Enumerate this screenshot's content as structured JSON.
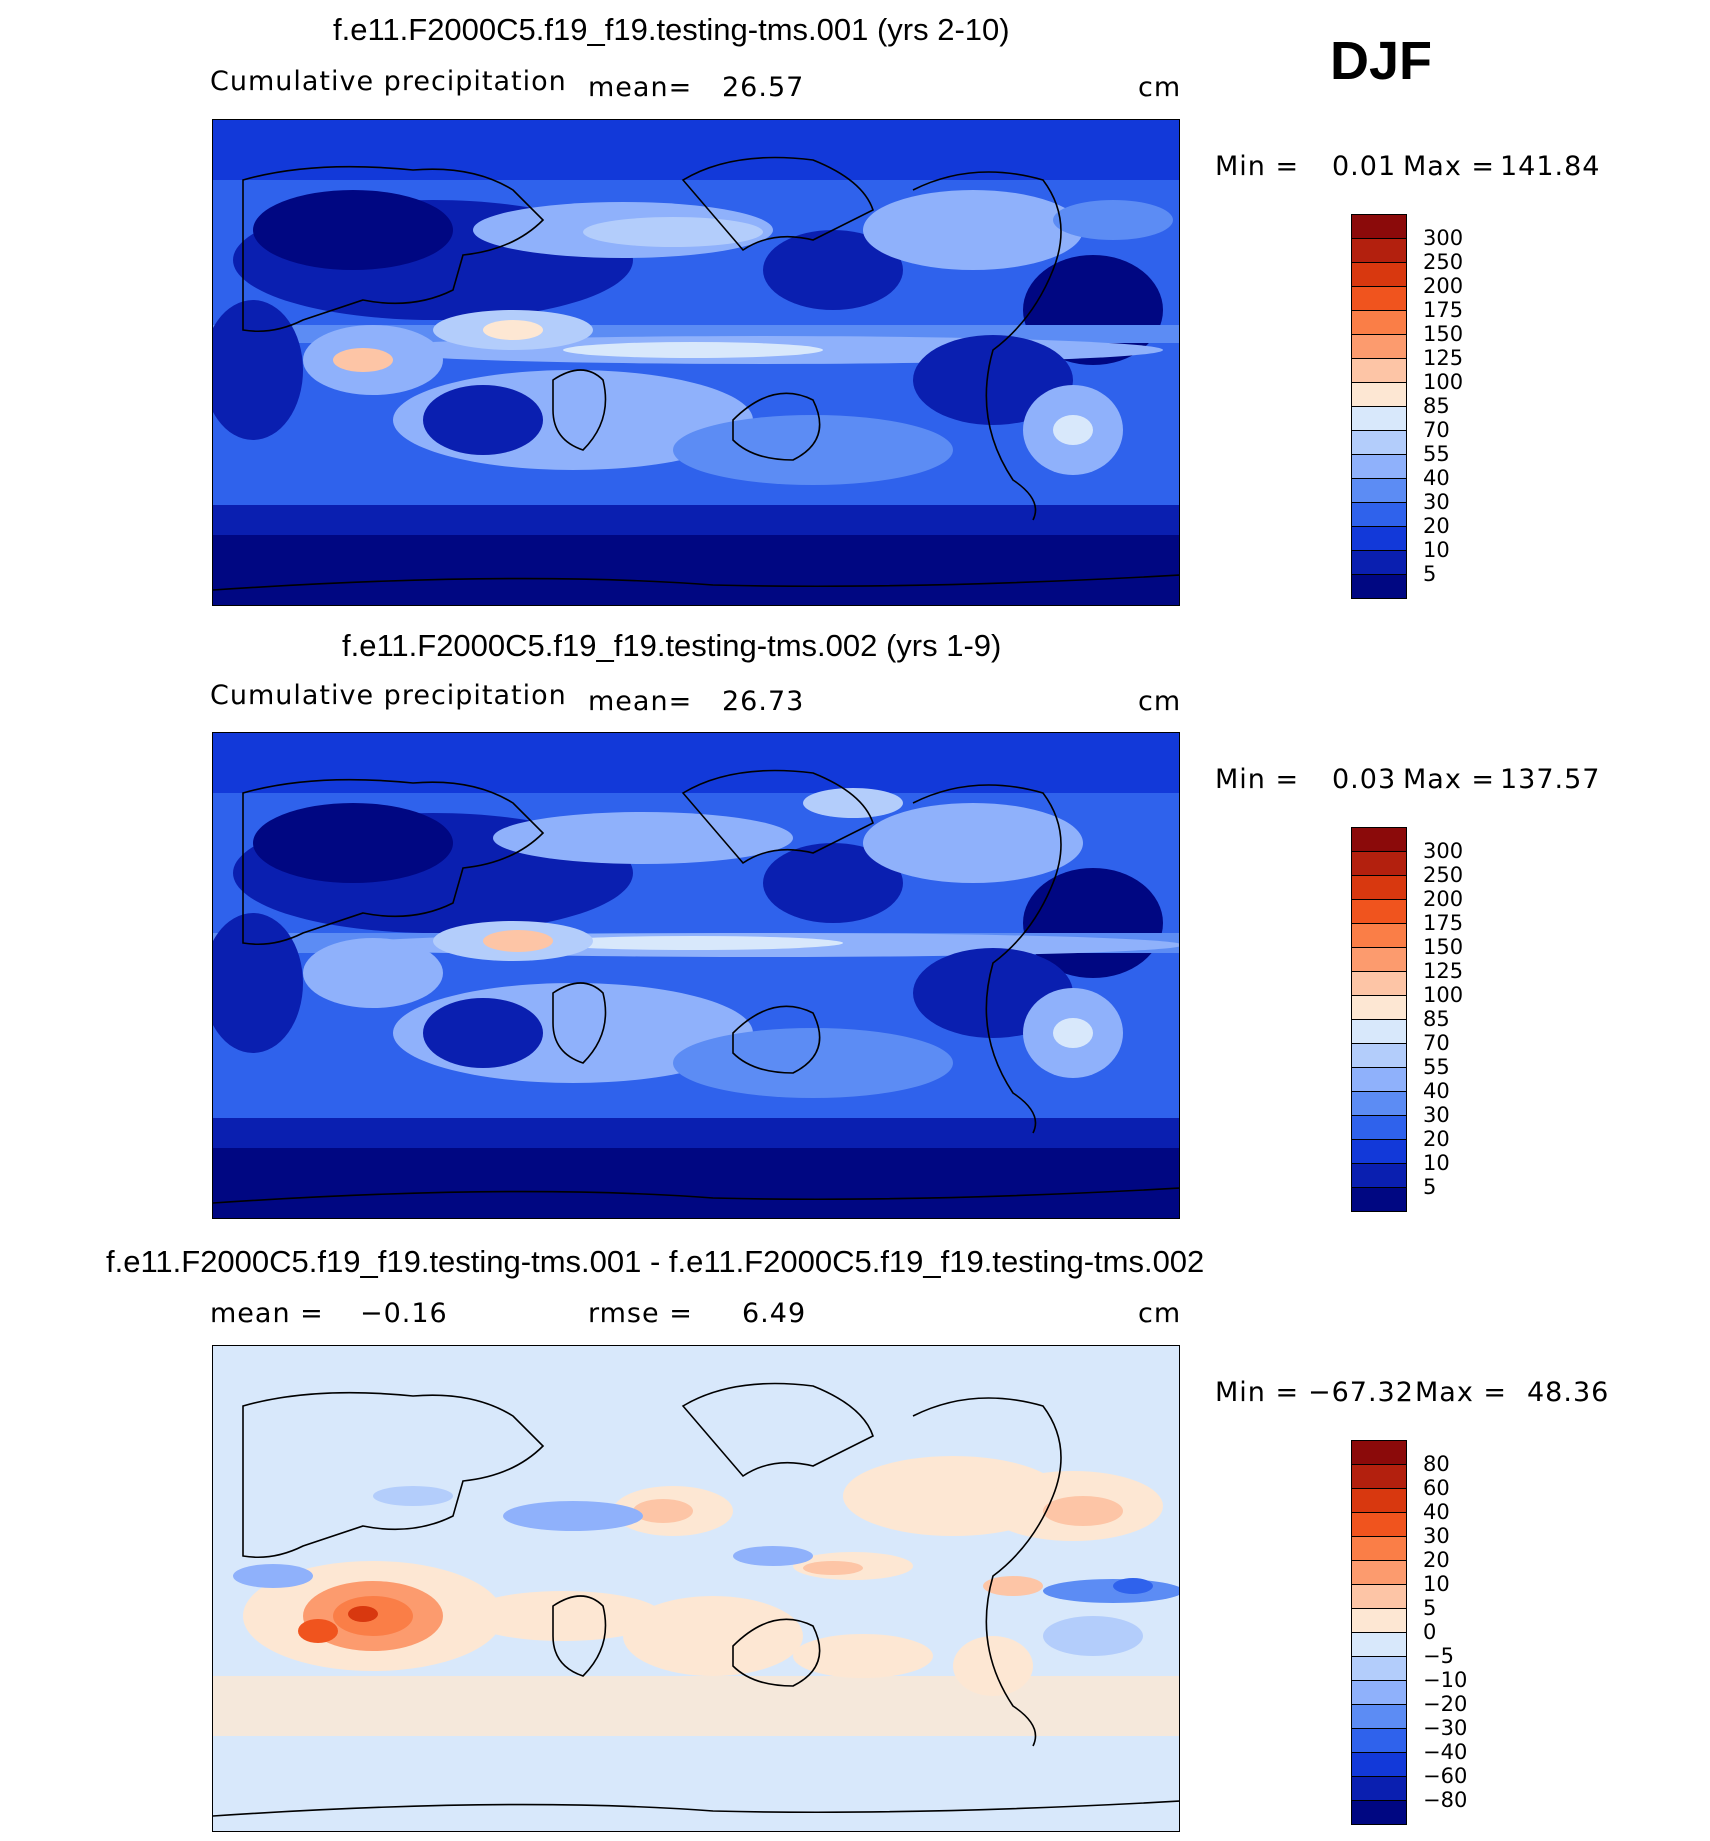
{
  "season_label": "DJF",
  "panels": [
    {
      "title": "f.e11.F2000C5.f19_f19.testing-tms.001 (yrs 2-10)",
      "left_label": "Cumulative  precipitation",
      "stat_label": "mean=",
      "stat_value": "26.57",
      "units": "cm",
      "min_label": "Min  =",
      "min_value": "0.01",
      "max_label": "Max  =",
      "max_value": "141.84"
    },
    {
      "title": "f.e11.F2000C5.f19_f19.testing-tms.002 (yrs 1-9)",
      "left_label": "Cumulative  precipitation",
      "stat_label": "mean=",
      "stat_value": "26.73",
      "units": "cm",
      "min_label": "Min  =",
      "min_value": "0.03",
      "max_label": "Max  =",
      "max_value": "137.57"
    },
    {
      "title": "f.e11.F2000C5.f19_f19.testing-tms.001 - f.e11.F2000C5.f19_f19.testing-tms.002",
      "left_label": "mean  =",
      "left_value": "−0.16",
      "stat_label": "rmse  =",
      "stat_value": "6.49",
      "units": "cm",
      "min_label": "Min  =",
      "min_value": "−67.32",
      "max_label": "Max  =",
      "max_value": "48.36"
    }
  ],
  "colorbars": {
    "precip": {
      "labels": [
        "300",
        "250",
        "200",
        "175",
        "150",
        "125",
        "100",
        "85",
        "70",
        "55",
        "40",
        "30",
        "20",
        "10",
        "5"
      ],
      "colors": [
        "#8b0a0a",
        "#b3200e",
        "#d8380f",
        "#f0541e",
        "#fa7e47",
        "#fc9b6e",
        "#fdc5a6",
        "#fde7d3",
        "#d8e8fb",
        "#b3cdfb",
        "#8fb1fb",
        "#5c8cf4",
        "#2f62ec",
        "#1239d9",
        "#0a1fb0",
        "#000782"
      ]
    },
    "diff": {
      "labels": [
        "80",
        "60",
        "40",
        "30",
        "20",
        "10",
        "5",
        "0",
        "−5",
        "−10",
        "−20",
        "−30",
        "−40",
        "−60",
        "−80"
      ],
      "colors": [
        "#8b0a0a",
        "#b3200e",
        "#d8380f",
        "#f0541e",
        "#fa7e47",
        "#fc9b6e",
        "#fdc5a6",
        "#fde7d3",
        "#d8e8fb",
        "#b3cdfb",
        "#8fb1fb",
        "#5c8cf4",
        "#2f62ec",
        "#1239d9",
        "#0a1fb0",
        "#000782"
      ]
    }
  },
  "chart_data": [
    {
      "type": "heatmap",
      "title": "f.e11.F2000C5.f19_f19.testing-tms.001 (yrs 2-10)",
      "variable": "Cumulative precipitation",
      "units": "cm",
      "mean": 26.57,
      "min": 0.01,
      "max": 141.84,
      "contour_levels": [
        5,
        10,
        20,
        30,
        40,
        55,
        70,
        85,
        100,
        125,
        150,
        175,
        200,
        250,
        300
      ],
      "projection": "global cylindrical equidistant, Pacific-centered"
    },
    {
      "type": "heatmap",
      "title": "f.e11.F2000C5.f19_f19.testing-tms.002 (yrs 1-9)",
      "variable": "Cumulative precipitation",
      "units": "cm",
      "mean": 26.73,
      "min": 0.03,
      "max": 137.57,
      "contour_levels": [
        5,
        10,
        20,
        30,
        40,
        55,
        70,
        85,
        100,
        125,
        150,
        175,
        200,
        250,
        300
      ],
      "projection": "global cylindrical equidistant, Pacific-centered"
    },
    {
      "type": "heatmap",
      "title": "f.e11.F2000C5.f19_f19.testing-tms.001 - f.e11.F2000C5.f19_f19.testing-tms.002",
      "units": "cm",
      "mean": -0.16,
      "rmse": 6.49,
      "min": -67.32,
      "max": 48.36,
      "contour_levels": [
        -80,
        -60,
        -40,
        -30,
        -20,
        -10,
        -5,
        0,
        5,
        10,
        20,
        30,
        40,
        60,
        80
      ],
      "projection": "global cylindrical equidistant, Pacific-centered"
    }
  ]
}
